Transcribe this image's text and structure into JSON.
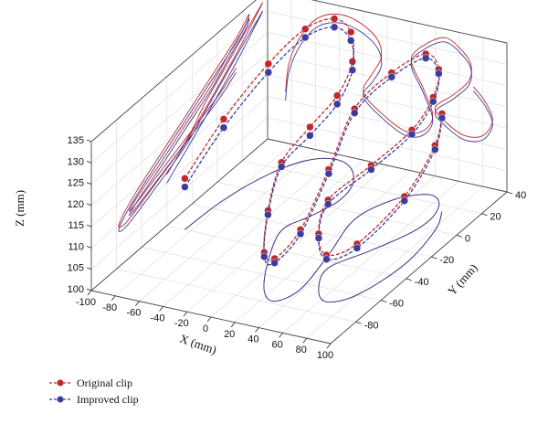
{
  "chart_data": {
    "type": "3d-line",
    "title": "",
    "xlabel": "X (mm)",
    "ylabel": "Y (mm)",
    "zlabel": "Z (mm)",
    "xlim": [
      -100,
      100
    ],
    "ylim": [
      -100,
      40
    ],
    "zlim": [
      100,
      135
    ],
    "x_ticks": [
      -100,
      -80,
      -60,
      -40,
      -20,
      0,
      20,
      40,
      60,
      80,
      100
    ],
    "y_ticks": [
      -80,
      -60,
      -40,
      -20,
      0,
      20,
      40
    ],
    "z_ticks": [
      100,
      105,
      110,
      115,
      120,
      125,
      130,
      135
    ],
    "grid": true,
    "projections": [
      "xy-floor",
      "xz-back-wall",
      "yz-left-wall"
    ],
    "legend_position": "bottom-left",
    "series": [
      {
        "name": "Original clip",
        "color": "#c0282d",
        "points": [
          [
            -85,
            -40,
            112
          ],
          [
            -82,
            -12,
            119
          ],
          [
            -72,
            14,
            126
          ],
          [
            -58,
            30,
            131
          ],
          [
            -40,
            36,
            133
          ],
          [
            -22,
            32,
            132
          ],
          [
            -8,
            20,
            129
          ],
          [
            -5,
            5,
            125
          ],
          [
            -12,
            -10,
            121
          ],
          [
            -20,
            -25,
            116
          ],
          [
            -5,
            -50,
            112
          ],
          [
            15,
            -72,
            109
          ],
          [
            30,
            -78,
            110
          ],
          [
            38,
            -65,
            114
          ],
          [
            30,
            -35,
            120
          ],
          [
            20,
            -5,
            126
          ],
          [
            30,
            15,
            130
          ],
          [
            48,
            25,
            133
          ],
          [
            62,
            22,
            131
          ],
          [
            70,
            10,
            128
          ],
          [
            68,
            -5,
            124
          ],
          [
            55,
            -25,
            120
          ],
          [
            40,
            -45,
            116
          ],
          [
            50,
            -62,
            113
          ],
          [
            65,
            -70,
            111
          ],
          [
            80,
            -60,
            112
          ],
          [
            88,
            -30,
            116
          ],
          [
            82,
            0,
            120
          ],
          [
            72,
            15,
            123
          ]
        ]
      },
      {
        "name": "Improved clip",
        "color": "#3c3c9c",
        "points": [
          [
            -85,
            -40,
            110
          ],
          [
            -82,
            -12,
            117
          ],
          [
            -72,
            14,
            124
          ],
          [
            -58,
            30,
            129
          ],
          [
            -40,
            36,
            131
          ],
          [
            -22,
            32,
            130
          ],
          [
            -8,
            20,
            127
          ],
          [
            -5,
            5,
            123
          ],
          [
            -12,
            -10,
            119
          ],
          [
            -20,
            -25,
            115
          ],
          [
            -5,
            -50,
            111
          ],
          [
            15,
            -72,
            108
          ],
          [
            30,
            -78,
            109
          ],
          [
            38,
            -65,
            113
          ],
          [
            30,
            -35,
            119
          ],
          [
            20,
            -5,
            125
          ],
          [
            30,
            15,
            129
          ],
          [
            48,
            25,
            132
          ],
          [
            62,
            22,
            130
          ],
          [
            70,
            10,
            127
          ],
          [
            68,
            -5,
            123
          ],
          [
            55,
            -25,
            119
          ],
          [
            40,
            -45,
            115
          ],
          [
            50,
            -62,
            112
          ],
          [
            65,
            -70,
            110
          ],
          [
            80,
            -60,
            111
          ],
          [
            88,
            -30,
            115
          ],
          [
            82,
            0,
            119
          ],
          [
            72,
            15,
            122
          ]
        ]
      }
    ]
  }
}
